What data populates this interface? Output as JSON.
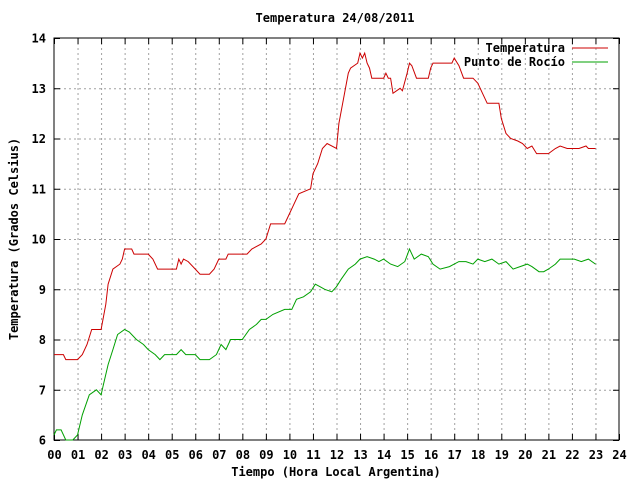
{
  "chart_data": {
    "type": "line",
    "title": "Temperatura 24/08/2011",
    "xlabel": "Tiempo (Hora Local Argentina)",
    "ylabel": "Temperatura (Grados Celsius)",
    "xlim": [
      0,
      24
    ],
    "ylim": [
      6,
      14
    ],
    "x_ticks": [
      "00",
      "01",
      "02",
      "03",
      "04",
      "05",
      "06",
      "07",
      "08",
      "09",
      "10",
      "11",
      "12",
      "13",
      "14",
      "15",
      "16",
      "17",
      "18",
      "19",
      "20",
      "21",
      "22",
      "23",
      "24"
    ],
    "y_ticks": [
      "6",
      "7",
      "8",
      "9",
      "10",
      "11",
      "12",
      "13",
      "14"
    ],
    "grid": true,
    "legend_position": "top-right",
    "series": [
      {
        "name": "Temperatura",
        "color": "#cc0000",
        "points": [
          [
            0.0,
            7.7
          ],
          [
            0.4,
            7.7
          ],
          [
            0.5,
            7.6
          ],
          [
            1.0,
            7.6
          ],
          [
            1.2,
            7.7
          ],
          [
            1.4,
            7.9
          ],
          [
            1.6,
            8.2
          ],
          [
            2.0,
            8.2
          ],
          [
            2.2,
            8.7
          ],
          [
            2.3,
            9.1
          ],
          [
            2.5,
            9.4
          ],
          [
            2.8,
            9.5
          ],
          [
            2.9,
            9.6
          ],
          [
            3.0,
            9.8
          ],
          [
            3.3,
            9.8
          ],
          [
            3.4,
            9.7
          ],
          [
            4.0,
            9.7
          ],
          [
            4.2,
            9.6
          ],
          [
            4.4,
            9.4
          ],
          [
            5.2,
            9.4
          ],
          [
            5.3,
            9.6
          ],
          [
            5.4,
            9.5
          ],
          [
            5.5,
            9.6
          ],
          [
            5.7,
            9.55
          ],
          [
            6.0,
            9.4
          ],
          [
            6.2,
            9.3
          ],
          [
            6.6,
            9.3
          ],
          [
            6.8,
            9.4
          ],
          [
            7.0,
            9.6
          ],
          [
            7.3,
            9.6
          ],
          [
            7.4,
            9.7
          ],
          [
            8.2,
            9.7
          ],
          [
            8.4,
            9.8
          ],
          [
            8.8,
            9.9
          ],
          [
            9.0,
            10.0
          ],
          [
            9.2,
            10.3
          ],
          [
            9.8,
            10.3
          ],
          [
            10.0,
            10.5
          ],
          [
            10.2,
            10.7
          ],
          [
            10.4,
            10.9
          ],
          [
            10.9,
            11.0
          ],
          [
            11.0,
            11.3
          ],
          [
            11.2,
            11.5
          ],
          [
            11.4,
            11.8
          ],
          [
            11.6,
            11.9
          ],
          [
            12.0,
            11.8
          ],
          [
            12.1,
            12.3
          ],
          [
            12.3,
            12.8
          ],
          [
            12.5,
            13.3
          ],
          [
            12.6,
            13.4
          ],
          [
            12.9,
            13.5
          ],
          [
            13.0,
            13.7
          ],
          [
            13.1,
            13.6
          ],
          [
            13.2,
            13.7
          ],
          [
            13.3,
            13.5
          ],
          [
            13.4,
            13.4
          ],
          [
            13.5,
            13.2
          ],
          [
            14.0,
            13.2
          ],
          [
            14.1,
            13.3
          ],
          [
            14.2,
            13.2
          ],
          [
            14.3,
            13.2
          ],
          [
            14.4,
            12.9
          ],
          [
            14.7,
            13.0
          ],
          [
            14.8,
            12.95
          ],
          [
            15.0,
            13.3
          ],
          [
            15.1,
            13.5
          ],
          [
            15.2,
            13.45
          ],
          [
            15.4,
            13.2
          ],
          [
            15.9,
            13.2
          ],
          [
            16.0,
            13.4
          ],
          [
            16.1,
            13.5
          ],
          [
            16.9,
            13.5
          ],
          [
            17.0,
            13.6
          ],
          [
            17.2,
            13.45
          ],
          [
            17.4,
            13.2
          ],
          [
            17.8,
            13.2
          ],
          [
            18.0,
            13.1
          ],
          [
            18.2,
            12.9
          ],
          [
            18.4,
            12.7
          ],
          [
            18.9,
            12.7
          ],
          [
            19.0,
            12.4
          ],
          [
            19.2,
            12.1
          ],
          [
            19.4,
            12.0
          ],
          [
            19.7,
            11.95
          ],
          [
            19.9,
            11.9
          ],
          [
            20.1,
            11.8
          ],
          [
            20.3,
            11.85
          ],
          [
            20.5,
            11.7
          ],
          [
            21.0,
            11.7
          ],
          [
            21.3,
            11.8
          ],
          [
            21.5,
            11.85
          ],
          [
            21.8,
            11.8
          ],
          [
            22.3,
            11.8
          ],
          [
            22.6,
            11.85
          ],
          [
            22.7,
            11.8
          ],
          [
            23.0,
            11.8
          ]
        ]
      },
      {
        "name": "Punto de Rocío",
        "color": "#00a000",
        "points": [
          [
            0.0,
            6.1
          ],
          [
            0.1,
            6.2
          ],
          [
            0.3,
            6.2
          ],
          [
            0.5,
            6.0
          ],
          [
            0.8,
            6.0
          ],
          [
            1.0,
            6.1
          ],
          [
            1.2,
            6.5
          ],
          [
            1.5,
            6.9
          ],
          [
            1.8,
            7.0
          ],
          [
            2.0,
            6.9
          ],
          [
            2.1,
            7.1
          ],
          [
            2.3,
            7.5
          ],
          [
            2.5,
            7.8
          ],
          [
            2.7,
            8.1
          ],
          [
            3.0,
            8.2
          ],
          [
            3.2,
            8.15
          ],
          [
            3.5,
            8.0
          ],
          [
            3.8,
            7.9
          ],
          [
            4.0,
            7.8
          ],
          [
            4.3,
            7.7
          ],
          [
            4.5,
            7.6
          ],
          [
            4.7,
            7.7
          ],
          [
            5.0,
            7.7
          ],
          [
            5.2,
            7.7
          ],
          [
            5.4,
            7.8
          ],
          [
            5.6,
            7.7
          ],
          [
            6.0,
            7.7
          ],
          [
            6.2,
            7.6
          ],
          [
            6.6,
            7.6
          ],
          [
            6.9,
            7.7
          ],
          [
            7.1,
            7.9
          ],
          [
            7.3,
            7.8
          ],
          [
            7.5,
            8.0
          ],
          [
            8.0,
            8.0
          ],
          [
            8.3,
            8.2
          ],
          [
            8.6,
            8.3
          ],
          [
            8.8,
            8.4
          ],
          [
            9.0,
            8.4
          ],
          [
            9.3,
            8.5
          ],
          [
            9.8,
            8.6
          ],
          [
            10.1,
            8.6
          ],
          [
            10.3,
            8.8
          ],
          [
            10.6,
            8.85
          ],
          [
            10.9,
            8.95
          ],
          [
            11.1,
            9.1
          ],
          [
            11.3,
            9.05
          ],
          [
            11.5,
            9.0
          ],
          [
            11.8,
            8.95
          ],
          [
            12.0,
            9.05
          ],
          [
            12.2,
            9.2
          ],
          [
            12.5,
            9.4
          ],
          [
            12.8,
            9.5
          ],
          [
            13.0,
            9.6
          ],
          [
            13.3,
            9.65
          ],
          [
            13.6,
            9.6
          ],
          [
            13.8,
            9.55
          ],
          [
            14.0,
            9.6
          ],
          [
            14.3,
            9.5
          ],
          [
            14.6,
            9.45
          ],
          [
            14.9,
            9.55
          ],
          [
            15.1,
            9.8
          ],
          [
            15.3,
            9.6
          ],
          [
            15.6,
            9.7
          ],
          [
            15.9,
            9.65
          ],
          [
            16.1,
            9.5
          ],
          [
            16.4,
            9.4
          ],
          [
            16.8,
            9.45
          ],
          [
            17.0,
            9.5
          ],
          [
            17.2,
            9.55
          ],
          [
            17.5,
            9.55
          ],
          [
            17.8,
            9.5
          ],
          [
            18.0,
            9.6
          ],
          [
            18.3,
            9.55
          ],
          [
            18.6,
            9.6
          ],
          [
            18.9,
            9.5
          ],
          [
            19.2,
            9.55
          ],
          [
            19.5,
            9.4
          ],
          [
            19.8,
            9.45
          ],
          [
            20.1,
            9.5
          ],
          [
            20.3,
            9.45
          ],
          [
            20.6,
            9.35
          ],
          [
            20.8,
            9.35
          ],
          [
            21.0,
            9.4
          ],
          [
            21.3,
            9.5
          ],
          [
            21.5,
            9.6
          ],
          [
            21.8,
            9.6
          ],
          [
            22.1,
            9.6
          ],
          [
            22.4,
            9.55
          ],
          [
            22.7,
            9.6
          ],
          [
            23.0,
            9.5
          ]
        ]
      }
    ]
  }
}
